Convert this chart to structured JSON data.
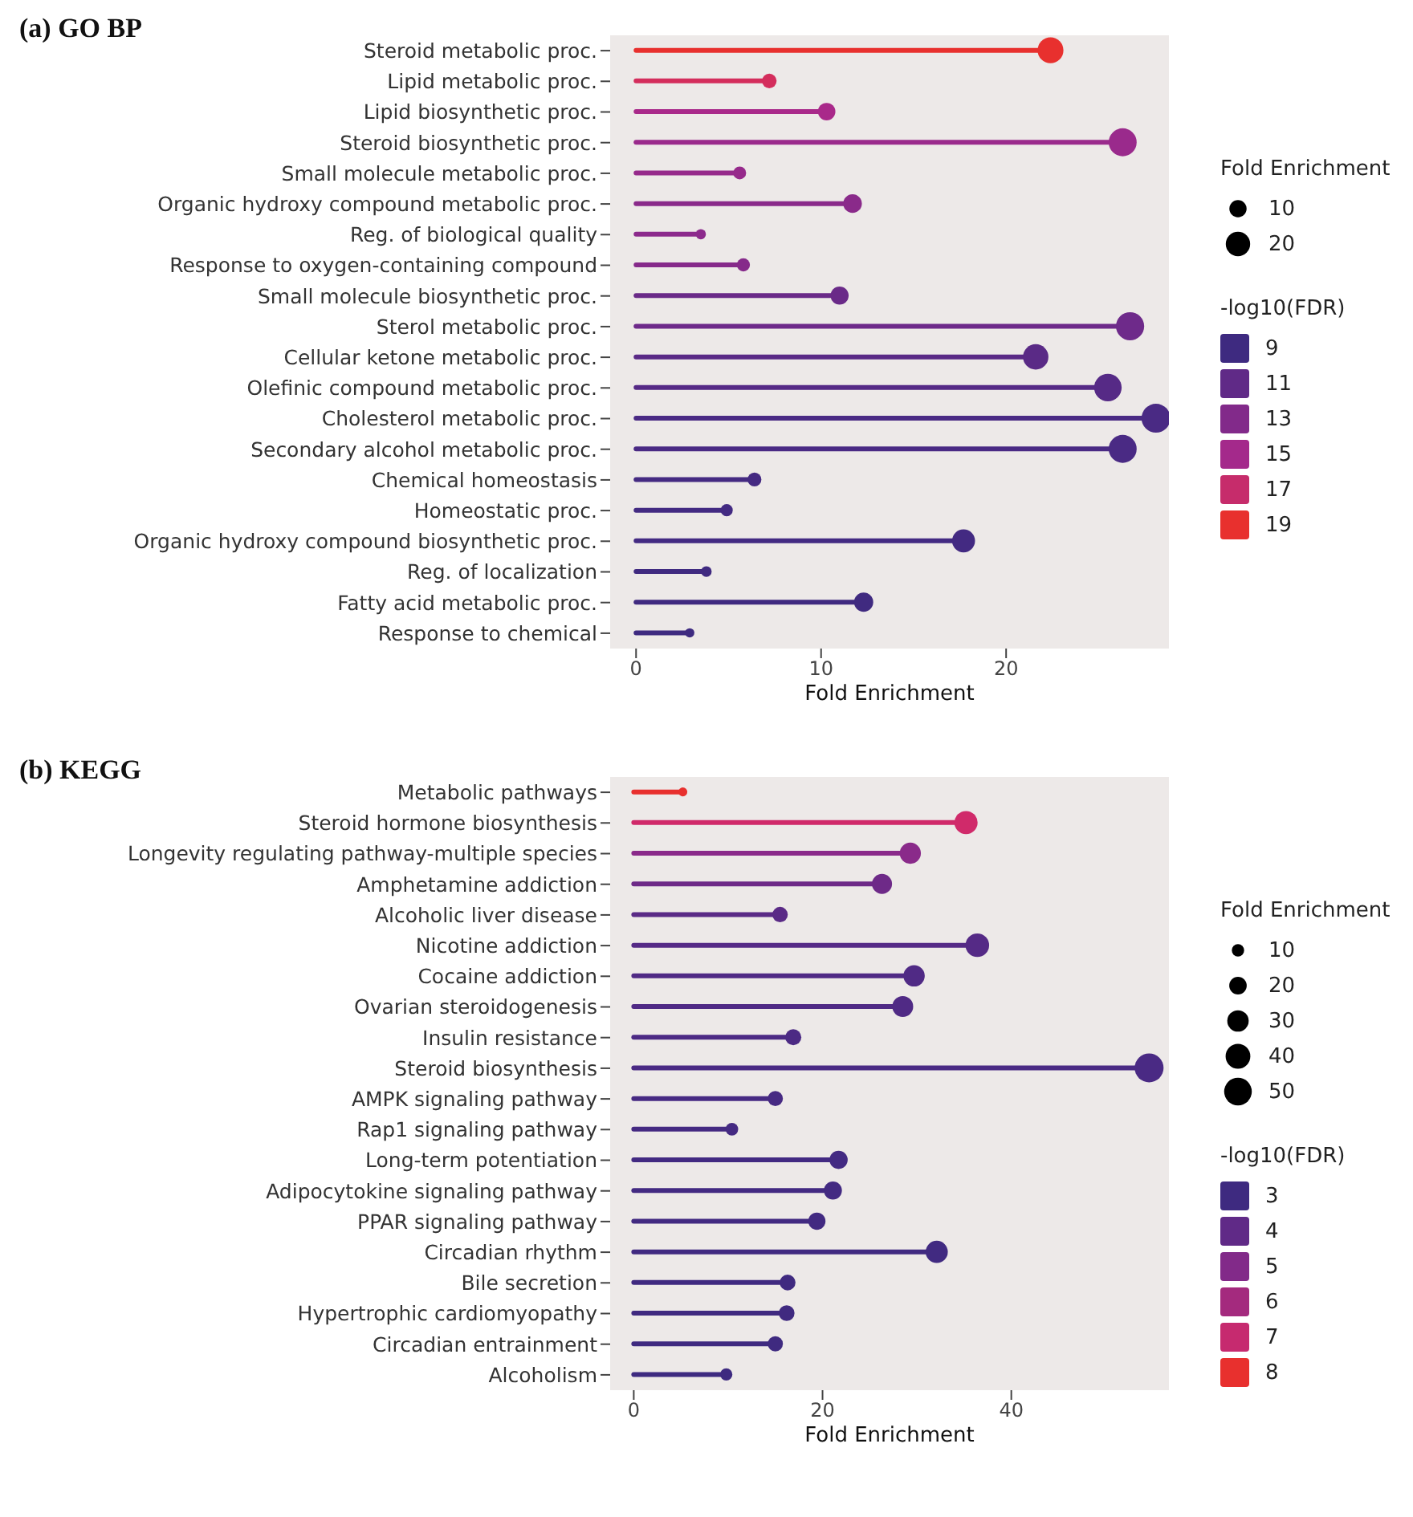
{
  "chart_data": [
    {
      "type": "lollipop",
      "title": "(a) GO BP",
      "orientation": "horizontal",
      "xlabel": "Fold Enrichment",
      "legend_title": "Fold Enrichment",
      "clabel": "-log10(FDR)",
      "categories": [
        "Steroid metabolic proc.",
        "Lipid metabolic proc.",
        "Lipid biosynthetic proc.",
        "Steroid biosynthetic proc.",
        "Small molecule metabolic proc.",
        "Organic hydroxy compound metabolic proc.",
        "Reg. of biological quality",
        "Response to oxygen-containing compound",
        "Small molecule biosynthetic proc.",
        "Sterol metabolic proc.",
        "Cellular ketone metabolic proc.",
        "Olefinic compound metabolic proc.",
        "Cholesterol metabolic proc.",
        "Secondary alcohol metabolic proc.",
        "Chemical homeostasis",
        "Homeostatic proc.",
        "Organic hydroxy compound biosynthetic proc.",
        "Reg. of localization",
        "Fatty acid metabolic proc.",
        "Response to chemical"
      ],
      "values": [
        22.4,
        7.2,
        10.3,
        26.3,
        5.6,
        11.7,
        3.5,
        5.8,
        11.0,
        26.7,
        21.6,
        25.5,
        28.1,
        26.3,
        6.4,
        4.9,
        17.7,
        3.8,
        12.3,
        2.9
      ],
      "sizes": [
        22.4,
        7.2,
        10.3,
        26.3,
        5.6,
        11.7,
        3.5,
        5.8,
        11.0,
        26.7,
        21.6,
        25.5,
        28.1,
        26.3,
        6.4,
        4.9,
        17.7,
        3.8,
        12.3,
        2.9
      ],
      "size_legend": [
        10,
        20
      ],
      "colors": [
        "#e8302e",
        "#d42d5c",
        "#a9298a",
        "#9a2a8c",
        "#962a8b",
        "#8a2a8a",
        "#8c2a8c",
        "#862a8a",
        "#6a2a88",
        "#6e2a8a",
        "#5a2a86",
        "#562a86",
        "#4a2a84",
        "#4a2a84",
        "#452a82",
        "#432a82",
        "#432a82",
        "#402a80",
        "#402a80",
        "#3e2a80"
      ],
      "cticks": [
        9,
        11,
        13,
        15,
        17,
        19
      ],
      "xlim": [
        -1.4,
        28.8
      ],
      "xticks": [
        0,
        10,
        20
      ]
    },
    {
      "type": "lollipop",
      "title": "(b) KEGG",
      "orientation": "horizontal",
      "xlabel": "Fold Enrichment",
      "legend_title": "Fold Enrichment",
      "clabel": "-log10(FDR)",
      "categories": [
        "Metabolic pathways",
        "Steroid hormone biosynthesis",
        "Longevity regulating pathway-multiple species",
        "Amphetamine addiction",
        "Alcoholic liver disease",
        "Nicotine addiction",
        "Cocaine addiction",
        "Ovarian steroidogenesis",
        "Insulin resistance",
        "Steroid biosynthesis",
        "AMPK signaling pathway",
        "Rap1 signaling pathway",
        "Long-term potentiation",
        "Adipocytokine signaling pathway",
        "PPAR signaling pathway",
        "Circadian rhythm",
        "Bile secretion",
        "Hypertrophic cardiomyopathy",
        "Circadian entrainment",
        "Alcoholism"
      ],
      "values": [
        5.2,
        35.2,
        29.3,
        26.3,
        15.5,
        36.4,
        29.7,
        28.5,
        16.9,
        54.6,
        15.0,
        10.4,
        21.7,
        21.1,
        19.4,
        32.1,
        16.3,
        16.2,
        15.0,
        9.8
      ],
      "sizes": [
        5.2,
        35.2,
        29.3,
        26.3,
        15.5,
        36.4,
        29.7,
        28.5,
        16.9,
        54.6,
        15.0,
        10.4,
        21.7,
        21.1,
        19.4,
        32.1,
        16.3,
        16.2,
        15.0,
        9.8
      ],
      "size_legend": [
        10,
        20,
        30,
        40,
        50
      ],
      "colors": [
        "#e8302e",
        "#d02a6a",
        "#8a2a8a",
        "#6e2a88",
        "#5a2a86",
        "#552a86",
        "#502a85",
        "#502a85",
        "#4c2a84",
        "#4a2a84",
        "#472a83",
        "#452a82",
        "#432a82",
        "#432a82",
        "#422a81",
        "#412a81",
        "#402a80",
        "#402a80",
        "#3f2a80",
        "#3e2a80"
      ],
      "cticks": [
        3,
        4,
        5,
        6,
        7,
        8
      ],
      "xlim": [
        -2.5,
        56.7
      ],
      "xticks": [
        0,
        20,
        40
      ]
    }
  ]
}
